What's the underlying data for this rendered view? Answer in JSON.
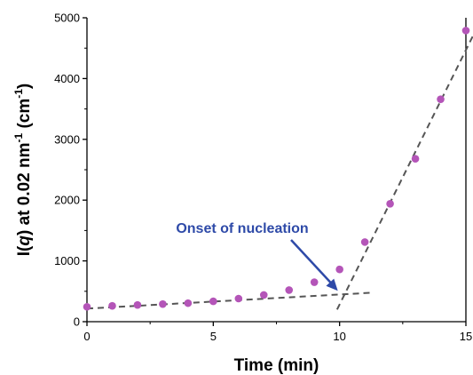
{
  "chart_data": {
    "type": "scatter",
    "title": "",
    "xlabel": "Time (min)",
    "ylabel": {
      "prefix": "I(",
      "italic": "q",
      "middle": ") at 0.02 nm",
      "superscript": "-1",
      "unit_open": " (cm",
      "unit_superscript": "-1",
      "unit_close": ")"
    },
    "xlim": [
      0,
      15
    ],
    "ylim": [
      0,
      5000
    ],
    "xticks": [
      0,
      5,
      10,
      15
    ],
    "yticks": [
      0,
      1000,
      2000,
      3000,
      4000,
      5000
    ],
    "grid": false,
    "series": [
      {
        "x": [
          0,
          1,
          2,
          3,
          4,
          5,
          6,
          7,
          8,
          9,
          10,
          11,
          12,
          13,
          14,
          15
        ],
        "y": [
          245,
          260,
          275,
          290,
          305,
          335,
          380,
          440,
          520,
          650,
          860,
          1310,
          1940,
          2680,
          3660,
          4790
        ],
        "color": "#b455b8"
      }
    ],
    "fit_lines": [
      {
        "x": [
          0,
          11.2
        ],
        "y": [
          215,
          475
        ],
        "color": "#555555",
        "style": "dashed"
      },
      {
        "x": [
          9.9,
          15.3
        ],
        "y": [
          200,
          4720
        ],
        "color": "#555555",
        "style": "dashed"
      }
    ],
    "annotation": {
      "text": "Onset of nucleation",
      "color": "#2e4aa8",
      "arrow_to": [
        10,
        420
      ]
    }
  }
}
